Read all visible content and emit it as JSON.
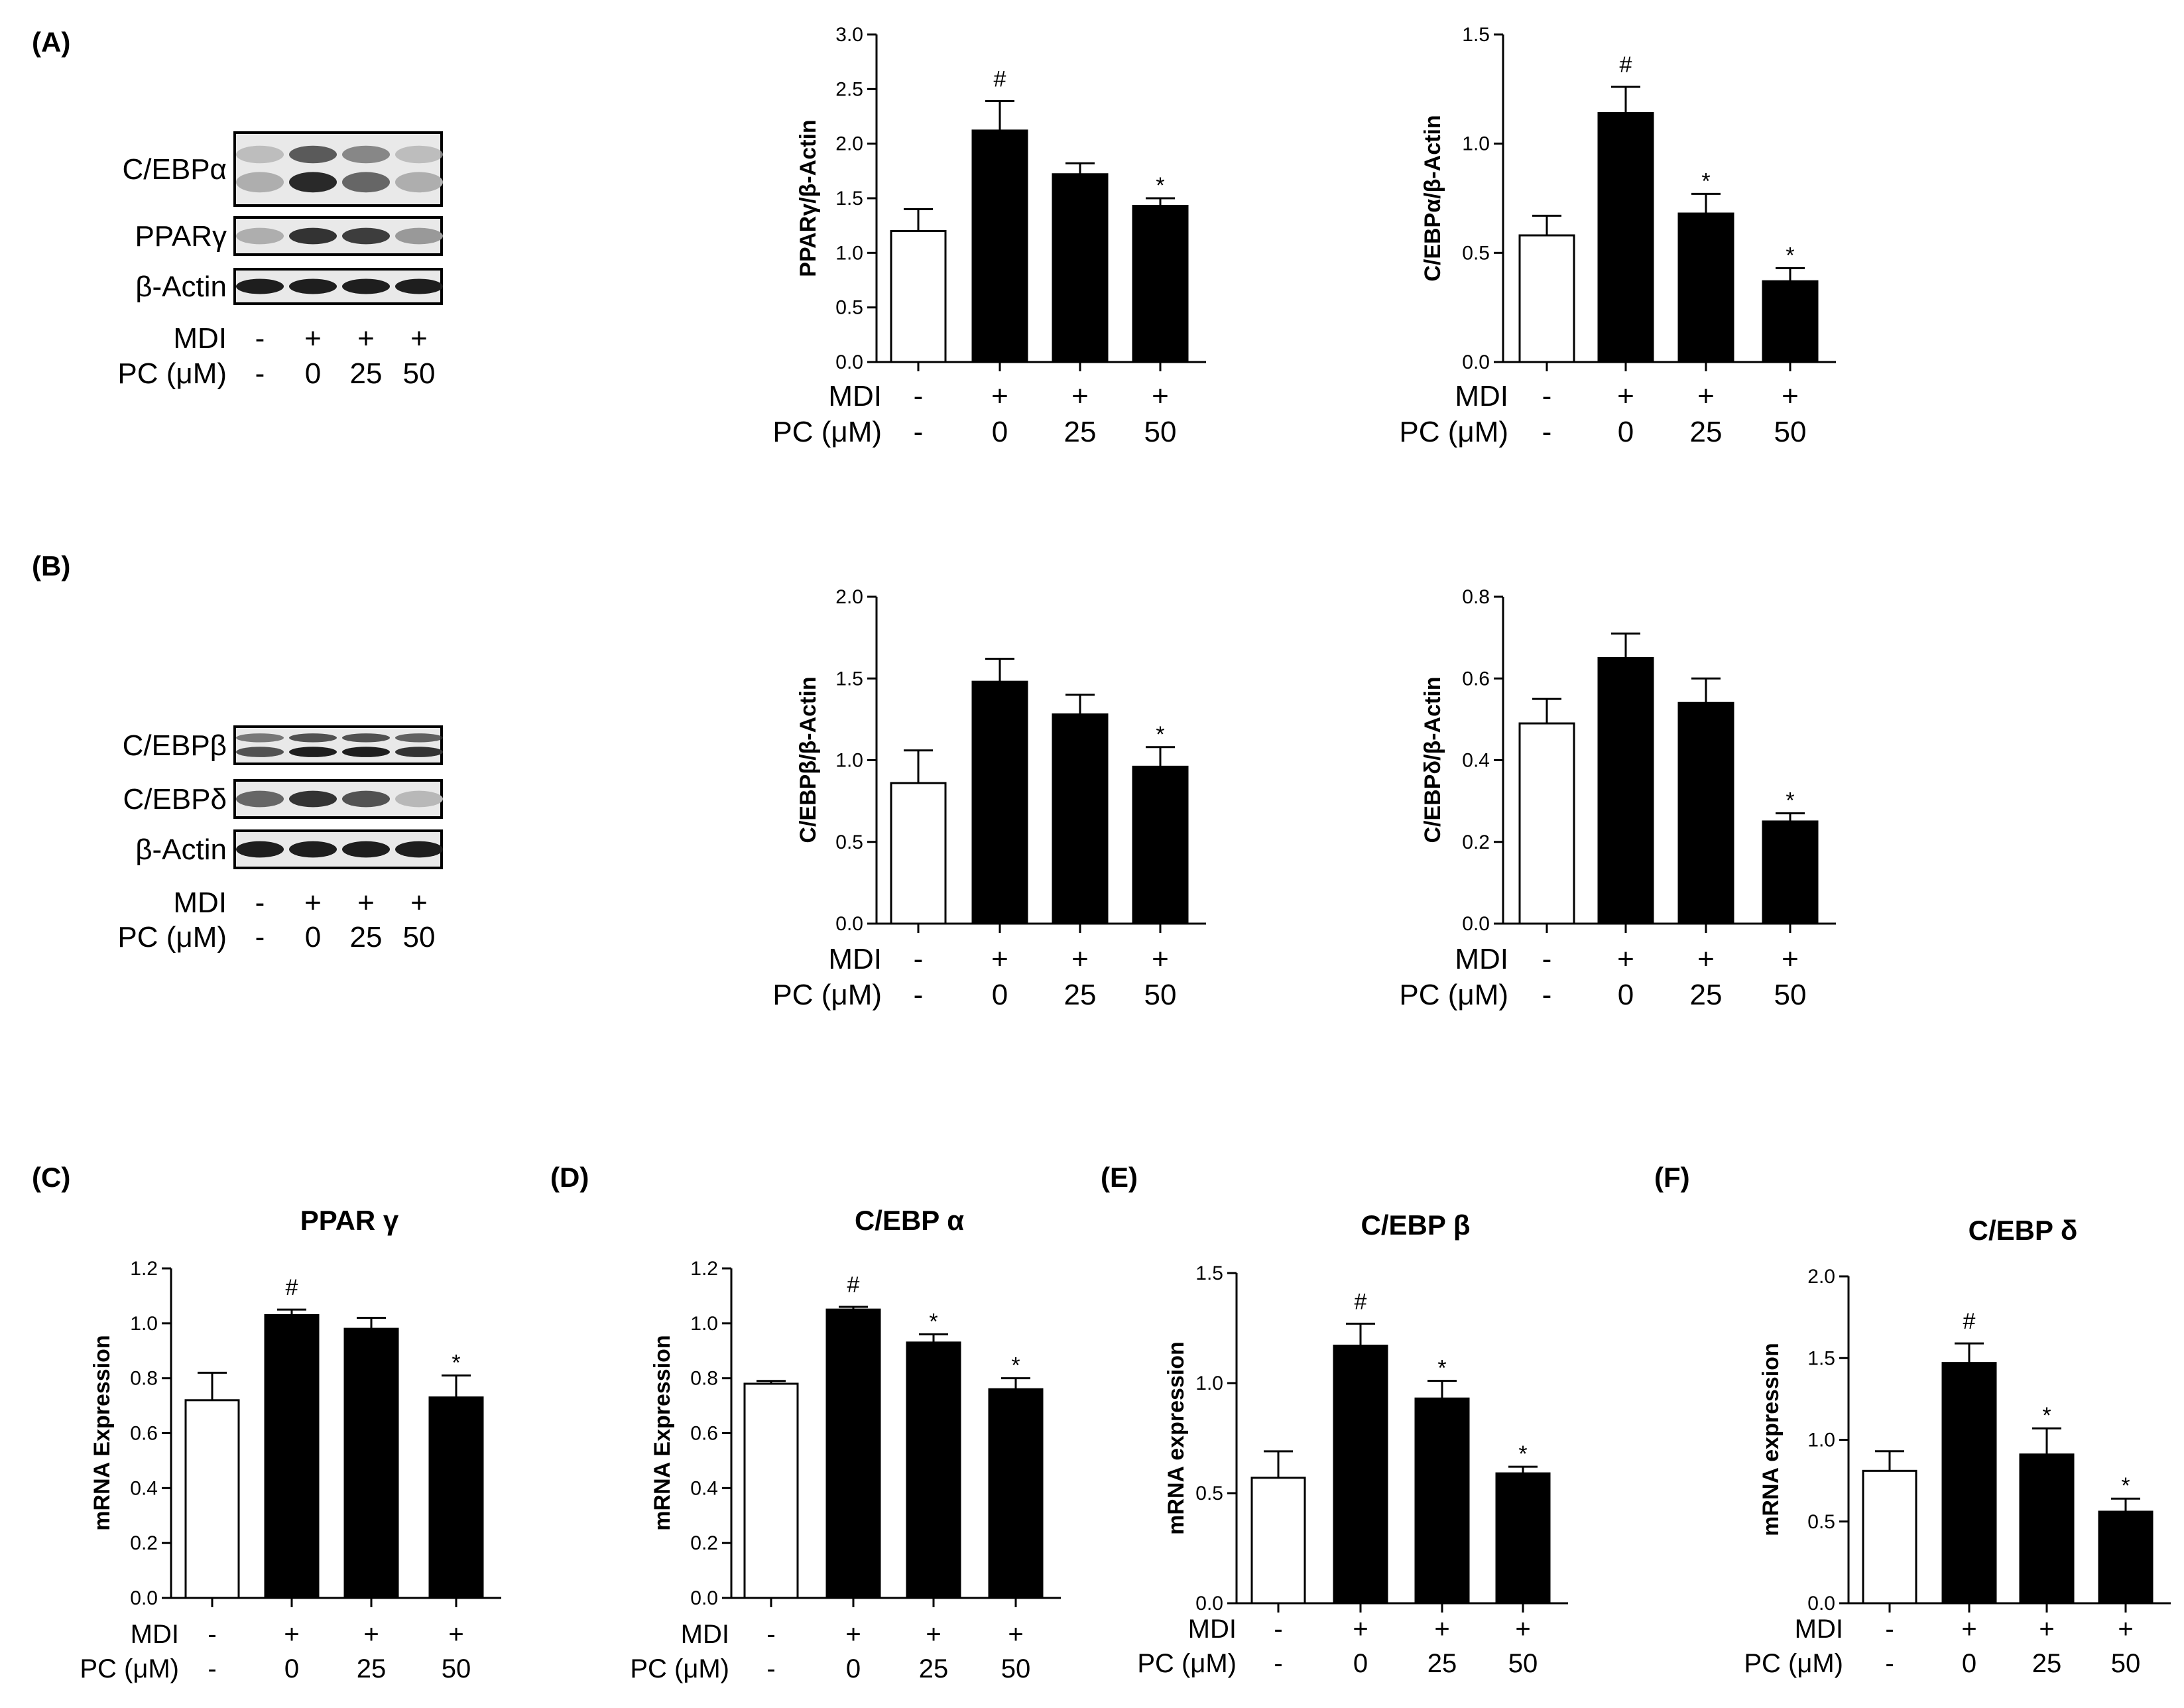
{
  "panel_letters": {
    "A": "(A)",
    "B": "(B)",
    "C": "(C)",
    "D": "(D)",
    "E": "(E)",
    "F": "(F)"
  },
  "blots": [
    {
      "panel": "A",
      "bands": [
        {
          "label": "C/EBPα",
          "intensity": [
            0.25,
            0.9,
            0.6,
            0.25
          ],
          "double": true
        },
        {
          "label": "PPARγ",
          "intensity": [
            0.25,
            0.85,
            0.8,
            0.35
          ],
          "double": false
        },
        {
          "label": "β-Actin",
          "intensity": [
            0.95,
            0.95,
            0.95,
            0.95
          ],
          "double": false
        }
      ],
      "mdi_label": "MDI",
      "pc_label": "PC (μM)",
      "mdi": [
        "-",
        "+",
        "+",
        "+"
      ],
      "pc": [
        "-",
        "0",
        "25",
        "50"
      ]
    },
    {
      "panel": "B",
      "bands": [
        {
          "label": "C/EBPβ",
          "intensity": [
            0.7,
            0.95,
            0.95,
            0.85
          ],
          "double": true
        },
        {
          "label": "C/EBPδ",
          "intensity": [
            0.6,
            0.85,
            0.7,
            0.2
          ],
          "double": false
        },
        {
          "label": "β-Actin",
          "intensity": [
            0.95,
            0.95,
            0.95,
            0.95
          ],
          "double": false
        }
      ],
      "mdi_label": "MDI",
      "pc_label": "PC (μM)",
      "mdi": [
        "-",
        "+",
        "+",
        "+"
      ],
      "pc": [
        "-",
        "0",
        "25",
        "50"
      ]
    }
  ],
  "chart_data": [
    {
      "id": "A-ppar",
      "type": "bar",
      "title": "",
      "xlabel": "",
      "ylabel": "PPARγ/β-Actin",
      "ylim": [
        0,
        3.0
      ],
      "yticks": [
        "0.0",
        "0.5",
        "1.0",
        "1.5",
        "2.0",
        "2.5",
        "3.0"
      ],
      "categories": [
        "1",
        "2",
        "3",
        "4"
      ],
      "values": [
        1.2,
        2.12,
        1.72,
        1.43
      ],
      "errors": [
        0.2,
        0.27,
        0.1,
        0.07
      ],
      "fills": [
        "#ffffff",
        "#000000",
        "#000000",
        "#000000"
      ],
      "significance": [
        "",
        "#",
        "",
        "*"
      ],
      "mdi_label": "MDI",
      "pc_label": "PC (μM)",
      "mdi": [
        "-",
        "+",
        "+",
        "+"
      ],
      "pc": [
        "-",
        "0",
        "25",
        "50"
      ]
    },
    {
      "id": "A-cebpa",
      "type": "bar",
      "title": "",
      "xlabel": "",
      "ylabel": "C/EBPα/β-Actin",
      "ylim": [
        0,
        1.5
      ],
      "yticks": [
        "0.0",
        "0.5",
        "1.0",
        "1.5"
      ],
      "categories": [
        "1",
        "2",
        "3",
        "4"
      ],
      "values": [
        0.58,
        1.14,
        0.68,
        0.37
      ],
      "errors": [
        0.09,
        0.12,
        0.09,
        0.06
      ],
      "fills": [
        "#ffffff",
        "#000000",
        "#000000",
        "#000000"
      ],
      "significance": [
        "",
        "#",
        "*",
        "*"
      ],
      "mdi_label": "MDI",
      "pc_label": "PC (μM)",
      "mdi": [
        "-",
        "+",
        "+",
        "+"
      ],
      "pc": [
        "-",
        "0",
        "25",
        "50"
      ]
    },
    {
      "id": "B-cebpb",
      "type": "bar",
      "title": "",
      "xlabel": "",
      "ylabel": "C/EBPβ/β-Actin",
      "ylim": [
        0,
        2.0
      ],
      "yticks": [
        "0.0",
        "0.5",
        "1.0",
        "1.5",
        "2.0"
      ],
      "categories": [
        "1",
        "2",
        "3",
        "4"
      ],
      "values": [
        0.86,
        1.48,
        1.28,
        0.96
      ],
      "errors": [
        0.2,
        0.14,
        0.12,
        0.12
      ],
      "fills": [
        "#ffffff",
        "#000000",
        "#000000",
        "#000000"
      ],
      "significance": [
        "",
        "",
        "",
        "*"
      ],
      "mdi_label": "MDI",
      "pc_label": "PC (μM)",
      "mdi": [
        "-",
        "+",
        "+",
        "+"
      ],
      "pc": [
        "-",
        "0",
        "25",
        "50"
      ]
    },
    {
      "id": "B-cebpd",
      "type": "bar",
      "title": "",
      "xlabel": "",
      "ylabel": "C/EBPδ/β-Actin",
      "ylim": [
        0,
        0.8
      ],
      "yticks": [
        "0.0",
        "0.2",
        "0.4",
        "0.6",
        "0.8"
      ],
      "categories": [
        "1",
        "2",
        "3",
        "4"
      ],
      "values": [
        0.49,
        0.65,
        0.54,
        0.25
      ],
      "errors": [
        0.06,
        0.06,
        0.06,
        0.02
      ],
      "fills": [
        "#ffffff",
        "#000000",
        "#000000",
        "#000000"
      ],
      "significance": [
        "",
        "",
        "",
        "*"
      ],
      "mdi_label": "MDI",
      "pc_label": "PC (μM)",
      "mdi": [
        "-",
        "+",
        "+",
        "+"
      ],
      "pc": [
        "-",
        "0",
        "25",
        "50"
      ]
    },
    {
      "id": "C",
      "type": "bar",
      "title": "PPAR γ",
      "xlabel": "",
      "ylabel": "mRNA Expression",
      "ylim": [
        0,
        1.2
      ],
      "yticks": [
        "0.0",
        "0.2",
        "0.4",
        "0.6",
        "0.8",
        "1.0",
        "1.2"
      ],
      "categories": [
        "1",
        "2",
        "3",
        "4"
      ],
      "values": [
        0.72,
        1.03,
        0.98,
        0.73
      ],
      "errors": [
        0.1,
        0.02,
        0.04,
        0.08
      ],
      "fills": [
        "#ffffff",
        "#000000",
        "#000000",
        "#000000"
      ],
      "significance": [
        "",
        "#",
        "",
        "*"
      ],
      "mdi_label": "MDI",
      "pc_label": "PC (μM)",
      "mdi": [
        "-",
        "+",
        "+",
        "+"
      ],
      "pc": [
        "-",
        "0",
        "25",
        "50"
      ]
    },
    {
      "id": "D",
      "type": "bar",
      "title": "C/EBP α",
      "xlabel": "",
      "ylabel": "mRNA Expression",
      "ylim": [
        0,
        1.2
      ],
      "yticks": [
        "0.0",
        "0.2",
        "0.4",
        "0.6",
        "0.8",
        "1.0",
        "1.2"
      ],
      "categories": [
        "1",
        "2",
        "3",
        "4"
      ],
      "values": [
        0.78,
        1.05,
        0.93,
        0.76
      ],
      "errors": [
        0.01,
        0.01,
        0.03,
        0.04
      ],
      "fills": [
        "#ffffff",
        "#000000",
        "#000000",
        "#000000"
      ],
      "significance": [
        "",
        "#",
        "*",
        "*"
      ],
      "mdi_label": "MDI",
      "pc_label": "PC (μM)",
      "mdi": [
        "-",
        "+",
        "+",
        "+"
      ],
      "pc": [
        "-",
        "0",
        "25",
        "50"
      ]
    },
    {
      "id": "E",
      "type": "bar",
      "title": "C/EBP β",
      "xlabel": "",
      "ylabel": "mRNA expression",
      "ylim": [
        0,
        1.5
      ],
      "yticks": [
        "0.0",
        "0.5",
        "1.0",
        "1.5"
      ],
      "categories": [
        "1",
        "2",
        "3",
        "4"
      ],
      "values": [
        0.57,
        1.17,
        0.93,
        0.59
      ],
      "errors": [
        0.12,
        0.1,
        0.08,
        0.03
      ],
      "fills": [
        "#ffffff",
        "#000000",
        "#000000",
        "#000000"
      ],
      "significance": [
        "",
        "#",
        "*",
        "*"
      ],
      "mdi_label": "MDI",
      "pc_label": "PC (μM)",
      "mdi": [
        "-",
        "+",
        "+",
        "+"
      ],
      "pc": [
        "-",
        "0",
        "25",
        "50"
      ]
    },
    {
      "id": "F",
      "type": "bar",
      "title": "C/EBP δ",
      "xlabel": "",
      "ylabel": "mRNA expression",
      "ylim": [
        0,
        2.0
      ],
      "yticks": [
        "0.0",
        "0.5",
        "1.0",
        "1.5",
        "2.0"
      ],
      "categories": [
        "1",
        "2",
        "3",
        "4"
      ],
      "values": [
        0.81,
        1.47,
        0.91,
        0.56
      ],
      "errors": [
        0.12,
        0.12,
        0.16,
        0.08
      ],
      "fills": [
        "#ffffff",
        "#000000",
        "#000000",
        "#000000"
      ],
      "significance": [
        "",
        "#",
        "*",
        "*"
      ],
      "mdi_label": "MDI",
      "pc_label": "PC (μM)",
      "mdi": [
        "-",
        "+",
        "+",
        "+"
      ],
      "pc": [
        "-",
        "0",
        "25",
        "50"
      ]
    }
  ]
}
